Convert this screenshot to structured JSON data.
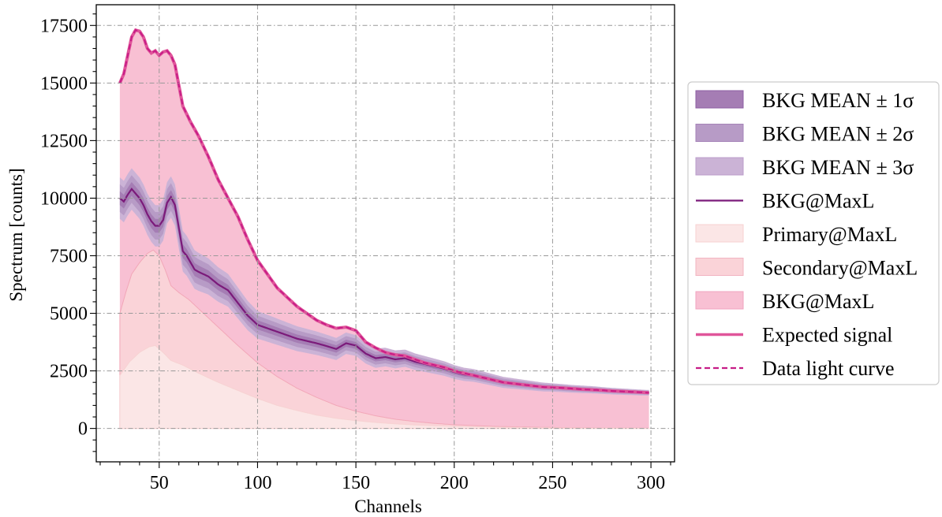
{
  "chart_data": {
    "type": "area",
    "xlabel": "Channels",
    "ylabel": "Spectrum [counts]",
    "xlim": [
      18,
      312
    ],
    "ylim": [
      -1450,
      18400
    ],
    "x_ticks": [
      50,
      100,
      150,
      200,
      250,
      300
    ],
    "y_ticks": [
      0,
      2500,
      5000,
      7500,
      10000,
      12500,
      15000,
      17500
    ],
    "grid": true,
    "legend_position": "right",
    "legend": [
      {
        "label": "BKG MEAN ± 1σ",
        "style": "band1"
      },
      {
        "label": "BKG MEAN ± 2σ",
        "style": "band2"
      },
      {
        "label": "BKG MEAN ± 3σ",
        "style": "band3"
      },
      {
        "label": "BKG@MaxL",
        "style": "bkg_line"
      },
      {
        "label": "Primary@MaxL",
        "style": "primary_fill"
      },
      {
        "label": "Secondary@MaxL",
        "style": "secondary_fill"
      },
      {
        "label": "BKG@MaxL",
        "style": "bkg_fill"
      },
      {
        "label": "Expected signal",
        "style": "expected_line"
      },
      {
        "label": "Data light curve",
        "style": "data_line"
      }
    ],
    "colors": {
      "band1": "#a57db4",
      "band2": "#b79bc6",
      "band3": "#cbb3d6",
      "bkg_line": "#7b1a7a",
      "primary_fill": "#fbe6e6",
      "secondary_fill": "#fad3d8",
      "bkg_fill": "#f8c0d3",
      "expected_line": "#e0559a",
      "data_line": "#c71c86",
      "grid": "#999999"
    },
    "series": [
      {
        "name": "Primary@MaxL",
        "kind": "stacked-area",
        "points": [
          [
            30,
            2300
          ],
          [
            35,
            2900
          ],
          [
            40,
            3300
          ],
          [
            45,
            3550
          ],
          [
            48,
            3600
          ],
          [
            52,
            3300
          ],
          [
            56,
            2950
          ],
          [
            62,
            2750
          ],
          [
            70,
            2400
          ],
          [
            80,
            2000
          ],
          [
            90,
            1650
          ],
          [
            100,
            1300
          ],
          [
            110,
            1000
          ],
          [
            120,
            780
          ],
          [
            130,
            580
          ],
          [
            140,
            440
          ],
          [
            150,
            340
          ],
          [
            160,
            260
          ],
          [
            170,
            200
          ],
          [
            180,
            150
          ],
          [
            200,
            90
          ],
          [
            225,
            50
          ],
          [
            250,
            25
          ],
          [
            275,
            12
          ],
          [
            299,
            5
          ]
        ]
      },
      {
        "name": "Secondary@MaxL",
        "kind": "stacked-area",
        "points": [
          [
            30,
            5000
          ],
          [
            33,
            5900
          ],
          [
            36,
            6700
          ],
          [
            40,
            7200
          ],
          [
            44,
            7600
          ],
          [
            47,
            7750
          ],
          [
            50,
            7500
          ],
          [
            53,
            6900
          ],
          [
            56,
            6200
          ],
          [
            60,
            5900
          ],
          [
            65,
            5600
          ],
          [
            70,
            5200
          ],
          [
            80,
            4400
          ],
          [
            90,
            3600
          ],
          [
            100,
            2850
          ],
          [
            110,
            2250
          ],
          [
            120,
            1750
          ],
          [
            130,
            1350
          ],
          [
            140,
            1000
          ],
          [
            150,
            750
          ],
          [
            160,
            550
          ],
          [
            170,
            400
          ],
          [
            180,
            300
          ],
          [
            190,
            220
          ],
          [
            200,
            160
          ],
          [
            220,
            90
          ],
          [
            240,
            55
          ],
          [
            260,
            30
          ],
          [
            280,
            15
          ],
          [
            299,
            8
          ]
        ]
      },
      {
        "name": "BKG@MaxL",
        "kind": "line-with-bands",
        "points": [
          [
            30,
            10000
          ],
          [
            32,
            9850
          ],
          [
            34,
            10150
          ],
          [
            36,
            10400
          ],
          [
            38,
            10200
          ],
          [
            40,
            10000
          ],
          [
            42,
            9700
          ],
          [
            44,
            9300
          ],
          [
            46,
            9000
          ],
          [
            48,
            8800
          ],
          [
            50,
            8800
          ],
          [
            52,
            9050
          ],
          [
            54,
            9800
          ],
          [
            56,
            10050
          ],
          [
            58,
            9700
          ],
          [
            60,
            8700
          ],
          [
            62,
            7700
          ],
          [
            64,
            7500
          ],
          [
            66,
            7200
          ],
          [
            68,
            6900
          ],
          [
            70,
            6800
          ],
          [
            75,
            6600
          ],
          [
            80,
            6250
          ],
          [
            85,
            6000
          ],
          [
            90,
            5450
          ],
          [
            95,
            4900
          ],
          [
            100,
            4500
          ],
          [
            105,
            4350
          ],
          [
            110,
            4200
          ],
          [
            115,
            4050
          ],
          [
            120,
            3900
          ],
          [
            125,
            3800
          ],
          [
            130,
            3700
          ],
          [
            135,
            3580
          ],
          [
            140,
            3450
          ],
          [
            145,
            3700
          ],
          [
            150,
            3600
          ],
          [
            155,
            3250
          ],
          [
            160,
            3050
          ],
          [
            165,
            3100
          ],
          [
            170,
            3000
          ],
          [
            175,
            3050
          ],
          [
            180,
            2900
          ],
          [
            185,
            2800
          ],
          [
            190,
            2700
          ],
          [
            195,
            2600
          ],
          [
            200,
            2450
          ],
          [
            205,
            2350
          ],
          [
            210,
            2300
          ],
          [
            215,
            2200
          ],
          [
            220,
            2100
          ],
          [
            225,
            2000
          ],
          [
            230,
            1950
          ],
          [
            235,
            1900
          ],
          [
            240,
            1850
          ],
          [
            245,
            1800
          ],
          [
            250,
            1780
          ],
          [
            255,
            1750
          ],
          [
            260,
            1720
          ],
          [
            265,
            1700
          ],
          [
            270,
            1680
          ],
          [
            275,
            1650
          ],
          [
            280,
            1620
          ],
          [
            285,
            1600
          ],
          [
            290,
            1580
          ],
          [
            295,
            1560
          ],
          [
            299,
            1550
          ]
        ],
        "sigma": [
          [
            30,
            300
          ],
          [
            60,
            300
          ],
          [
            100,
            200
          ],
          [
            150,
            150
          ],
          [
            200,
            100
          ],
          [
            250,
            60
          ],
          [
            299,
            40
          ]
        ]
      },
      {
        "name": "Expected signal",
        "kind": "total",
        "points": [
          [
            30,
            15000
          ],
          [
            32,
            15400
          ],
          [
            34,
            16200
          ],
          [
            36,
            17000
          ],
          [
            38,
            17300
          ],
          [
            40,
            17250
          ],
          [
            42,
            17000
          ],
          [
            44,
            16500
          ],
          [
            46,
            16300
          ],
          [
            48,
            16400
          ],
          [
            50,
            16200
          ],
          [
            52,
            16350
          ],
          [
            54,
            16400
          ],
          [
            56,
            16200
          ],
          [
            58,
            15800
          ],
          [
            60,
            14900
          ],
          [
            62,
            14000
          ],
          [
            66,
            13300
          ],
          [
            70,
            12700
          ],
          [
            75,
            11800
          ],
          [
            80,
            10800
          ],
          [
            85,
            10000
          ],
          [
            90,
            9200
          ],
          [
            95,
            8200
          ],
          [
            100,
            7300
          ],
          [
            105,
            6700
          ],
          [
            110,
            6100
          ],
          [
            115,
            5700
          ],
          [
            120,
            5300
          ],
          [
            125,
            5000
          ],
          [
            130,
            4700
          ],
          [
            135,
            4500
          ],
          [
            140,
            4350
          ],
          [
            145,
            4400
          ],
          [
            150,
            4250
          ],
          [
            155,
            3750
          ],
          [
            160,
            3500
          ],
          [
            165,
            3300
          ],
          [
            170,
            3200
          ],
          [
            175,
            3150
          ],
          [
            180,
            3000
          ],
          [
            185,
            2850
          ],
          [
            190,
            2750
          ],
          [
            195,
            2650
          ],
          [
            200,
            2500
          ],
          [
            205,
            2400
          ],
          [
            210,
            2300
          ],
          [
            215,
            2200
          ],
          [
            220,
            2100
          ],
          [
            225,
            2000
          ],
          [
            230,
            1950
          ],
          [
            235,
            1900
          ],
          [
            240,
            1850
          ],
          [
            245,
            1800
          ],
          [
            250,
            1780
          ],
          [
            255,
            1760
          ],
          [
            260,
            1730
          ],
          [
            265,
            1700
          ],
          [
            270,
            1680
          ],
          [
            275,
            1660
          ],
          [
            280,
            1630
          ],
          [
            285,
            1610
          ],
          [
            290,
            1590
          ],
          [
            295,
            1570
          ],
          [
            299,
            1550
          ]
        ]
      }
    ]
  }
}
